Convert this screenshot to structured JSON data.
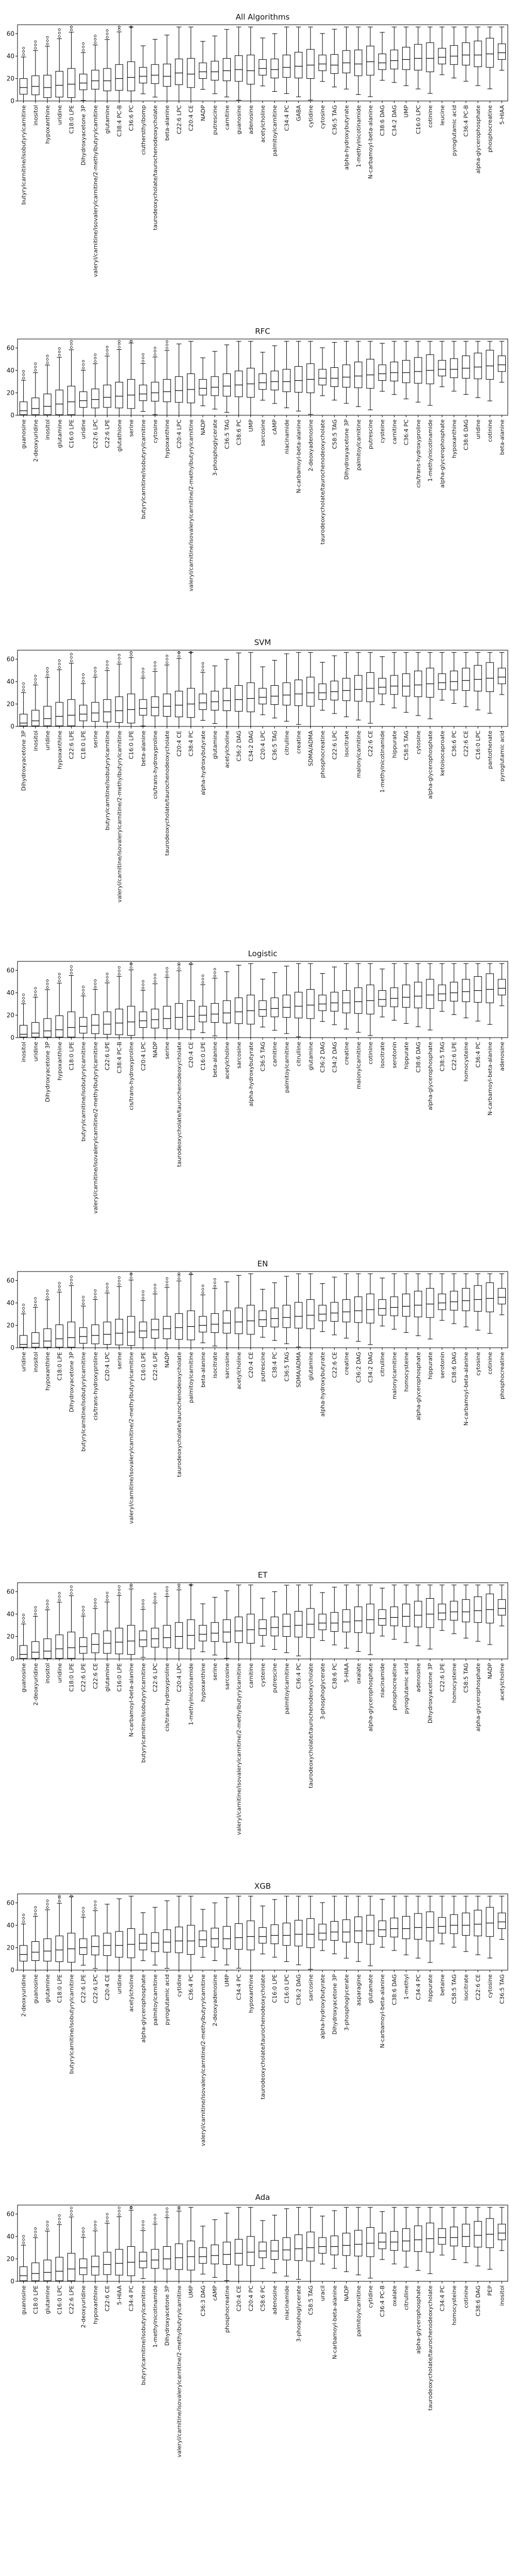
{
  "chart_data": [
    {
      "type": "box",
      "title": "All Algorithms",
      "ylim": [
        0,
        68
      ],
      "yticks": [
        0,
        20,
        40,
        60
      ],
      "categories": [
        "butyrylcarnitine/isobutyrylcarnitine",
        "inositol",
        "hypoxanthine",
        "uridine",
        "C18:0 LPE",
        "Dihydroxyacetone 3P",
        "valeryl/carnitine/isovalerylcarnitine/2-methylbutyrylcarnitine",
        "glutamine",
        "C38:4 PC-B",
        "C36:6 PC",
        "ciuthersthylbomp",
        "taurodeoxycholate/taurochenodeoxycholate",
        "beta-alanine",
        "C22:6 LPC",
        "C20:4 CE",
        "NADP",
        "putrescine",
        "carnitine",
        "guanosine",
        "adenosine",
        "acetylcholine",
        "palmitoylcarnitine",
        "C34:4 PC",
        "GABA",
        "cytidine",
        "cytosine",
        "C36:5 TAG",
        "alpha-hydroxybutyrate",
        "1-methylnicotinamide",
        "N-carbamoyl-beta-alanine",
        "C38:6 DAG",
        "C34:2 DAG",
        "UMP",
        "C16:0 LPC",
        "cotinine",
        "leucine",
        "pyroglutamic acid",
        "C36:4 PC-B",
        "alpha-glycerophosphate",
        "phosphocreatine",
        "5-HIAA"
      ],
      "values": [
        12,
        13,
        12,
        14,
        15,
        16,
        18,
        18,
        20,
        21,
        22,
        23,
        22,
        25,
        24,
        26,
        26,
        27,
        28,
        27,
        29,
        28,
        30,
        31,
        32,
        33,
        32,
        34,
        33,
        35,
        34,
        36,
        37,
        38,
        38,
        39,
        40,
        41,
        41,
        42,
        43
      ]
    },
    {
      "type": "box",
      "title": "RFC",
      "ylim": [
        0,
        68
      ],
      "yticks": [
        0,
        20,
        40,
        60
      ],
      "categories": [
        "guanosine",
        "2-deoxyuridine",
        "inositol",
        "glutamine",
        "C16:0 LPE",
        "uridine",
        "C22:6 LPC",
        "C22:6 LPE",
        "glutathione",
        "serine",
        "butyrylcarnitine/isobutyrylcarnitine",
        "cytosine",
        "hypoxanthine",
        "C20:4 LPC",
        "valeryl/carnitine/isovalerylcarnitine/2-methylbutyrylcarnitine",
        "NADP",
        "3-phosphoglycerate",
        "C36:5 TAG",
        "C38:6 PC",
        "UMP",
        "sarcosine",
        "cAMP",
        "niacinamide",
        "N-carbamoyl-beta-alanine",
        "2-deoxyadenosine",
        "taurodeoxycholate/taurochenodeoxycholate",
        "C58:5 TAG",
        "Dihydroxyacetone 3P",
        "palmitoylcarnitine",
        "putrescine",
        "cysteine",
        "carnitine",
        "C36:4 PC",
        "cis/trans-hydroxyproline",
        "1-methylnicotinamide",
        "alpha-glycerophosphate",
        "hypoxanthine",
        "C38:6 DAG",
        "uridine",
        "cotinine",
        "beta-alanine"
      ],
      "values": [
        4,
        6,
        8,
        10,
        12,
        13,
        14,
        16,
        17,
        18,
        19,
        20,
        21,
        22,
        23,
        24,
        25,
        26,
        27,
        28,
        29,
        30,
        30,
        31,
        32,
        33,
        33,
        34,
        35,
        36,
        37,
        38,
        38,
        39,
        40,
        41,
        41,
        42,
        43,
        44,
        45
      ]
    },
    {
      "type": "box",
      "title": "SVM",
      "ylim": [
        0,
        68
      ],
      "yticks": [
        0,
        20,
        40,
        60
      ],
      "categories": [
        "Dihydroxyacetone 3P",
        "inositol",
        "uridine",
        "hypoxanthine",
        "C22:6 LPE",
        "C18:0 LPE",
        "serine",
        "butyrylcarnitine/isobutyrylcarnitine",
        "valeryl/carnitine/isovalerylcarnitine/2-methylbutyrylcarnitine",
        "C16:0 LPE",
        "beta-alanine",
        "cis/trans-hydroxyproline",
        "taurodeoxycholate/taurochenodeoxycholate",
        "C20:4 CE",
        "C38:4 PC",
        "alpha-hydroxybutyrate",
        "glutamine",
        "acetylcholine",
        "C36:2 DAG",
        "C34:2 DAG",
        "C20:4 LPC",
        "C36:5 TAG",
        "citrulline",
        "creatine",
        "SDMA/ADMA",
        "phosphocreatine",
        "C22:6 LPC",
        "isocitrate",
        "malonylcarnitine",
        "C22:6 CE",
        "1-methylnicotinamide",
        "hippurate",
        "C58:5 TAG",
        "cytosine",
        "alpha-glycerophosphate",
        "ketoisocaproate",
        "C36:6 PC",
        "C22:6 CE",
        "C16:0 LPC",
        "pantothenate",
        "pyroglutamic acid"
      ],
      "values": [
        3,
        5,
        7,
        9,
        10,
        11,
        12,
        13,
        14,
        15,
        16,
        17,
        18,
        19,
        20,
        21,
        22,
        23,
        24,
        25,
        26,
        27,
        28,
        29,
        30,
        30,
        31,
        32,
        33,
        34,
        35,
        36,
        36,
        37,
        38,
        39,
        40,
        41,
        42,
        43,
        44
      ]
    },
    {
      "type": "box",
      "title": "Logistic",
      "ylim": [
        0,
        68
      ],
      "yticks": [
        0,
        20,
        40,
        60
      ],
      "categories": [
        "inositol",
        "uridine",
        "Dihydroxyacetone 3P",
        "hypoxanthine",
        "C18:0 LPE",
        "butyrylcarnitine/isobutyrylcarnitine",
        "valeryl/carnitine/isovalerylcarnitine/2-methylbutyrylcarnitine",
        "C22:6 LPE",
        "C38:4 PC-B",
        "cis/trans-hydroxyproline",
        "C20:4 LPC",
        "NADP",
        "serine",
        "taurodeoxycholate/taurochenodeoxycholate",
        "C20:4 CE",
        "C16:0 LPE",
        "beta-alanine",
        "acetylcholine",
        "sarcosine",
        "alpha-hydroxybutyrate",
        "C36:5 TAG",
        "carnitine",
        "palmitoylcarnitine",
        "citrulline",
        "glutamine",
        "C36:2 DAG",
        "C34:2 DAG",
        "creatine",
        "malonylcarnitine",
        "cotinine",
        "isocitrate",
        "serotonin",
        "hippurate",
        "C38:6 DAG",
        "alpha-glycerophosphate",
        "C38:5 TAG",
        "C22:6 LPE",
        "homocysteine",
        "C36:4 PC",
        "N-carbamoyl-beta-alanine",
        "adenosine"
      ],
      "values": [
        3,
        4,
        6,
        7,
        9,
        10,
        11,
        12,
        13,
        14,
        15,
        16,
        17,
        18,
        19,
        20,
        21,
        22,
        23,
        24,
        25,
        26,
        27,
        28,
        29,
        30,
        31,
        31,
        32,
        33,
        34,
        35,
        36,
        37,
        38,
        39,
        40,
        41,
        42,
        43,
        44
      ]
    },
    {
      "type": "box",
      "title": "EN",
      "ylim": [
        0,
        68
      ],
      "yticks": [
        0,
        20,
        40,
        60
      ],
      "categories": [
        "uridine",
        "inositol",
        "hypoxanthine",
        "C18:0 LPE",
        "Dihydroxyacetone 3P",
        "butyrylcarnitine/isobutyrylcarnitine",
        "cis/trans-hydroxyproline",
        "C20:4 LPC",
        "serine",
        "valeryl/carnitine/isovalerylcarnitine/2-methylbutyrylcarnitine",
        "C16:0 LPE",
        "C22:6 LPE",
        "NADP",
        "taurodeoxycholate/taurochenodeoxycholate",
        "palmitoylcarnitine",
        "beta-alanine",
        "isocitrate",
        "sarcosine",
        "acetylcholine",
        "C20:4 CE",
        "putrescine",
        "C38:4 PC",
        "C36:5 TAG",
        "SDMA/ADMA",
        "glutamine",
        "alpha-hydroxybutyrate",
        "C22:6 CE",
        "creatine",
        "C36:2 DAG",
        "C34:2 DAG",
        "citrulline",
        "malonylcarnitine",
        "homocysteine",
        "alpha-glycerophosphate",
        "hippurate",
        "serotonin",
        "C38:6 DAG",
        "N-carbamoyl-beta-alanine",
        "cytosine",
        "cotinine",
        "phosphocreatine"
      ],
      "values": [
        3,
        4,
        6,
        8,
        9,
        10,
        11,
        12,
        13,
        14,
        15,
        16,
        17,
        18,
        19,
        20,
        21,
        22,
        23,
        24,
        25,
        26,
        27,
        28,
        29,
        30,
        31,
        32,
        33,
        34,
        35,
        36,
        37,
        38,
        39,
        40,
        41,
        42,
        43,
        44,
        45
      ]
    },
    {
      "type": "box",
      "title": "ET",
      "ylim": [
        0,
        68
      ],
      "yticks": [
        0,
        20,
        40,
        60
      ],
      "categories": [
        "guanosine",
        "2-deoxyuridine",
        "inositol",
        "uridine",
        "C18:0 LPE",
        "C22:6 LPE",
        "C22:6 CE",
        "glutamine",
        "C16:0 LPE",
        "N-carbamoyl-beta-alanine",
        "butyrylcarnitine/isobutyrylcarnitine",
        "C22:6 LPC",
        "cis/trans-hydroxyproline",
        "C20:4 LPC",
        "1-methylnicotinamide",
        "hypoxanthine",
        "serine",
        "sarcosine",
        "valeryl/carnitine/isovalerylcarnitine/2-methylbutyrylcarnitine",
        "carnitine",
        "cysteine",
        "putrescine",
        "palmitoylcarnitine",
        "C36:4 PC",
        "taurodeoxycholate/taurochenodeoxycholate",
        "3-phosphoglycerate",
        "C38:6 PC",
        "5-HIAA",
        "oxalate",
        "alpha-glycerophosphate",
        "niacinamide",
        "phosphocreatine",
        "pyroglutamic acid",
        "adenosine",
        "Dihydroxyacetone 3P",
        "C22:6 LPE",
        "homocysteine",
        "C58:5 TAG",
        "alpha-glycerophosphate",
        "NADP",
        "acetylcholine"
      ],
      "values": [
        4,
        6,
        7,
        9,
        10,
        11,
        13,
        14,
        15,
        16,
        17,
        18,
        19,
        20,
        21,
        22,
        23,
        24,
        25,
        26,
        27,
        28,
        29,
        30,
        31,
        32,
        32,
        33,
        34,
        35,
        36,
        37,
        38,
        39,
        40,
        41,
        42,
        42,
        43,
        44,
        45
      ]
    },
    {
      "type": "box",
      "title": "XGB",
      "ylim": [
        0,
        68
      ],
      "yticks": [
        0,
        20,
        40,
        60
      ],
      "categories": [
        "2-deoxyuridine",
        "guanosine",
        "glutamine",
        "C18:0 LPE",
        "butyrylcarnitine/isobutyrylcarnitine",
        "C22:6 LPE",
        "C22:6 LPC",
        "C20:4 CE",
        "uridine",
        "acetylcholine",
        "alpha-glycerophosphate",
        "palmitoylcarnitine",
        "pyroglutamic acid",
        "cytidine",
        "C36:4 PC",
        "valeryl/carnitine/isovalerylcarnitine/2-methylbutyrylcarnitine",
        "2-deoxyadenosine",
        "UMP",
        "C34:4 PC",
        "hypoxanthine",
        "taurodeoxycholate/taurochenodeoxycholate",
        "C16:0 LPE",
        "C16:0 LPC",
        "C36:2 DAG",
        "sarcosine",
        "alpha-hydroxybutyrate",
        "Dihydroxyacetone 3P",
        "3-phosphoglycerate",
        "asparagine",
        "glutamate",
        "N-carbamoyl-beta-alanine",
        "C38:6 DAG",
        "1-methyl",
        "C34:4 PC",
        "hippurate",
        "betaine",
        "C58:5 TAG",
        "isocitrate",
        "C22:6 CE",
        "cytosine",
        "C36:5 TAG"
      ],
      "values": [
        14,
        16,
        17,
        18,
        19,
        20,
        21,
        22,
        22,
        23,
        24,
        24,
        25,
        26,
        26,
        27,
        28,
        28,
        29,
        30,
        30,
        31,
        31,
        32,
        32,
        33,
        34,
        34,
        35,
        35,
        36,
        37,
        37,
        38,
        38,
        39,
        40,
        40,
        41,
        42,
        43
      ]
    },
    {
      "type": "box",
      "title": "Ada",
      "ylim": [
        0,
        68
      ],
      "yticks": [
        0,
        20,
        40,
        60
      ],
      "categories": [
        "guanosine",
        "C18:0 LPE",
        "glutamine",
        "C16:0 LPC",
        "C22:6 LPE",
        "2-deoxyuridine",
        "hypoxanthine",
        "C22:6 CE",
        "5-HIAA",
        "C34:4 PC",
        "butyrylcarnitine/isobutyrylcarnitine",
        "1-methylnicotinamide",
        "Dihydroxyacetone 3P",
        "valeryl/carnitine/isovalerylcarnitine/2-methylbutyrylcarnitine",
        "UMP",
        "C36:3 DAG",
        "cAMP",
        "phosphocreatine",
        "C20:4 CE",
        "C20:4 PC",
        "C58:6 PC",
        "adenosine",
        "niacinamide",
        "3-phosphoglycerate",
        "C58:5 TAG",
        "uracil",
        "N-carbamoyl-beta-alanine",
        "NADP",
        "palmitoylcarnitine",
        "cytidine",
        "C36:4 PC-B",
        "oxalate",
        "citrulline",
        "alpha-glycerophosphate",
        "taurodeoxycholate/taurochenodeoxycholate",
        "C34:4 PC",
        "homocysteine",
        "cotinine",
        "C38:6 DAG",
        "PEP",
        "inositol"
      ],
      "values": [
        5,
        7,
        8,
        9,
        11,
        12,
        13,
        15,
        16,
        17,
        18,
        19,
        20,
        21,
        22,
        22,
        23,
        24,
        25,
        26,
        27,
        27,
        28,
        29,
        30,
        31,
        31,
        32,
        33,
        34,
        35,
        35,
        36,
        37,
        38,
        39,
        39,
        40,
        41,
        42,
        43
      ]
    }
  ]
}
